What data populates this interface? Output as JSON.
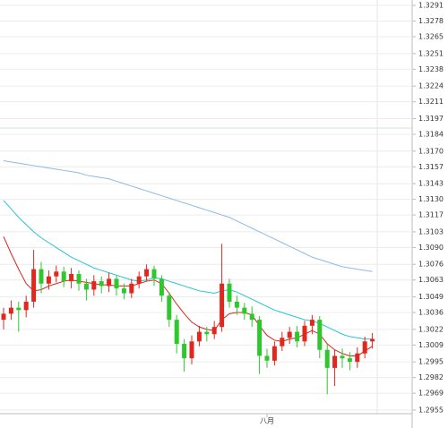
{
  "chart_data": {
    "type": "candlestick",
    "categories": [
      null,
      null,
      null,
      null,
      null,
      null,
      null,
      null,
      null,
      null,
      null,
      null,
      null,
      null,
      null,
      null,
      null,
      null,
      null,
      null,
      null,
      null,
      null,
      null,
      null,
      null,
      null,
      null,
      null,
      null,
      null,
      null,
      null,
      null,
      null,
      "八月",
      null,
      null,
      null,
      null,
      null,
      null,
      null,
      null,
      null,
      null,
      null,
      null,
      null,
      null
    ],
    "open": [
      1.303,
      1.3035,
      1.304,
      1.3038,
      1.3045,
      1.3072,
      1.306,
      1.3066,
      1.307,
      1.3062,
      1.3068,
      1.306,
      1.3055,
      1.3062,
      1.3058,
      1.3064,
      1.3056,
      1.3052,
      1.306,
      1.3066,
      1.3072,
      1.3064,
      1.305,
      1.303,
      1.301,
      1.2998,
      1.3012,
      1.302,
      1.3018,
      1.3024,
      1.306,
      1.3045,
      1.304,
      1.3035,
      1.303,
      1.3,
      1.2996,
      1.3008,
      1.3015,
      1.302,
      1.3012,
      1.3025,
      1.303,
      1.3005,
      1.299,
      1.3,
      1.2998,
      1.2995,
      1.3002,
      1.3012
    ],
    "high": [
      1.304,
      1.3046,
      1.3045,
      1.305,
      1.3088,
      1.3078,
      1.3071,
      1.3075,
      1.3074,
      1.3073,
      1.3071,
      1.3064,
      1.3067,
      1.3066,
      1.3069,
      1.3067,
      1.306,
      1.3064,
      1.307,
      1.3076,
      1.3075,
      1.3067,
      1.3053,
      1.3034,
      1.3014,
      1.3017,
      1.3025,
      1.3024,
      1.3029,
      1.3093,
      1.3064,
      1.305,
      1.3044,
      1.3041,
      1.3033,
      1.3006,
      1.3012,
      1.302,
      1.3024,
      1.3025,
      1.3029,
      1.3034,
      1.3033,
      1.301,
      1.3005,
      1.3006,
      1.3003,
      1.3007,
      1.3016,
      1.3019
    ],
    "low": [
      1.3022,
      1.303,
      1.302,
      1.3032,
      1.304,
      1.3052,
      1.3055,
      1.3061,
      1.3057,
      1.3056,
      1.3054,
      1.3046,
      1.305,
      1.3052,
      1.3053,
      1.305,
      1.3047,
      1.3048,
      1.3056,
      1.3062,
      1.3058,
      1.3045,
      1.3024,
      1.3002,
      1.2987,
      1.2993,
      1.3008,
      1.3012,
      1.3014,
      1.302,
      1.304,
      1.3034,
      1.303,
      1.3024,
      1.2985,
      1.299,
      1.2992,
      1.3004,
      1.301,
      1.3007,
      1.3008,
      1.3018,
      1.2998,
      1.2968,
      1.2975,
      1.299,
      1.2988,
      1.299,
      1.2998,
      1.3006
    ],
    "close": [
      1.3035,
      1.304,
      1.3038,
      1.3045,
      1.3072,
      1.306,
      1.3066,
      1.307,
      1.3062,
      1.3068,
      1.306,
      1.3055,
      1.3062,
      1.3058,
      1.3064,
      1.3056,
      1.3052,
      1.306,
      1.3066,
      1.3072,
      1.3064,
      1.305,
      1.303,
      1.301,
      1.2998,
      1.3012,
      1.302,
      1.3018,
      1.3024,
      1.306,
      1.3045,
      1.304,
      1.3035,
      1.303,
      1.3,
      1.2996,
      1.3008,
      1.3015,
      1.302,
      1.3012,
      1.3025,
      1.303,
      1.3005,
      1.299,
      1.3,
      1.2998,
      1.2995,
      1.3002,
      1.3012,
      1.3014
    ],
    "up_color": "#e0281f",
    "down_color": "#2ec82e",
    "lines": [
      {
        "color": "#8fb8e6",
        "values": [
          1.3162,
          1.3161,
          1.316,
          1.3159,
          1.3158,
          1.3157,
          1.3156,
          1.3155,
          1.3154,
          1.3153,
          1.3152,
          1.315,
          1.3149,
          1.3148,
          1.3147,
          1.3145,
          1.3143,
          1.3141,
          1.3139,
          1.3137,
          1.3135,
          1.3133,
          1.3131,
          1.3129,
          1.3127,
          1.3125,
          1.3123,
          1.3121,
          1.3119,
          1.3117,
          1.3115,
          1.3112,
          1.3109,
          1.3106,
          1.3103,
          1.31,
          1.3097,
          1.3094,
          1.3091,
          1.3088,
          1.3085,
          1.3082,
          1.308,
          1.3078,
          1.3076,
          1.3074,
          1.3073,
          1.3072,
          1.3071,
          1.307
        ]
      },
      {
        "color": "#27c4d8",
        "values": [
          1.3129,
          1.3122,
          1.3115,
          1.3109,
          1.3103,
          1.3098,
          1.3094,
          1.309,
          1.3086,
          1.3082,
          1.3079,
          1.3076,
          1.3073,
          1.3071,
          1.3069,
          1.3067,
          1.3065,
          1.3063,
          1.3062,
          1.3063,
          1.3065,
          1.3064,
          1.3062,
          1.306,
          1.3058,
          1.3056,
          1.3054,
          1.3053,
          1.3052,
          1.3054,
          1.3055,
          1.3053,
          1.305,
          1.3047,
          1.3044,
          1.3041,
          1.3038,
          1.3036,
          1.3034,
          1.3032,
          1.303,
          1.3029,
          1.3027,
          1.3024,
          1.3021,
          1.3018,
          1.3016,
          1.3015,
          1.3014,
          1.3014
        ]
      },
      {
        "color": "#d8261c",
        "values": [
          1.3099,
          1.3085,
          1.3072,
          1.306,
          1.3054,
          1.3055,
          1.3058,
          1.306,
          1.3062,
          1.3063,
          1.3062,
          1.3061,
          1.306,
          1.3059,
          1.3059,
          1.3058,
          1.3058,
          1.3058,
          1.306,
          1.3062,
          1.3063,
          1.306,
          1.3052,
          1.3043,
          1.3035,
          1.3028,
          1.3024,
          1.3022,
          1.3021,
          1.303,
          1.3035,
          1.3036,
          1.3036,
          1.3034,
          1.3025,
          1.3017,
          1.3013,
          1.3012,
          1.3014,
          1.3015,
          1.3018,
          1.3021,
          1.3018,
          1.301,
          1.3005,
          1.3002,
          1.3,
          1.3,
          1.3004,
          1.3008
        ]
      }
    ],
    "ylim": [
      1.2952,
      1.32955
    ],
    "yticks": [
      1.3291,
      1.3278,
      1.3265,
      1.3251,
      1.3238,
      1.3224,
      1.3211,
      1.3197,
      1.3184,
      {
        "value": 1.317,
        "label": "1.3170"
      },
      1.3157,
      1.3143,
      {
        "value": 1.313,
        "label": "1.3130"
      },
      1.3117,
      1.3103,
      {
        "value": 1.309,
        "label": "1.3090"
      },
      1.3076,
      1.3063,
      1.3049,
      1.3036,
      1.3022,
      1.3009,
      1.2995,
      1.2982,
      1.2969,
      1.2955
    ],
    "grid": true
  }
}
